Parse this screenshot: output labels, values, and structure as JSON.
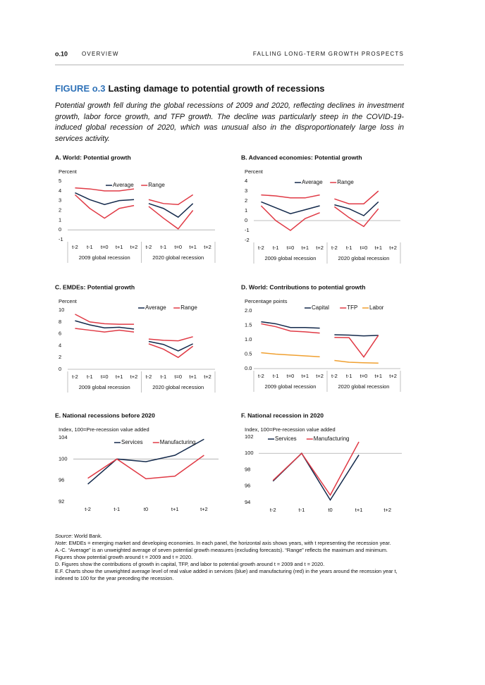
{
  "header": {
    "page": "o.10",
    "section": "OVERVIEW",
    "running_title": "FALLING LONG-TERM GROWTH PROSPECTS"
  },
  "figure": {
    "label": "FIGURE o.3",
    "title": "Lasting damage to potential growth of recessions"
  },
  "caption": "Potential growth fell during the global recessions of 2009 and 2020, reflecting declines in investment growth, labor force growth, and TFP growth. The decline was particularly steep in the COVID-19-induced global recession of 2020, which was unusual also in the disproportionately large loss in services activity.",
  "panels": [
    {
      "type": "line",
      "title": "A. World: Potential growth",
      "ylabel": "Percent",
      "ylim": [
        -1,
        5
      ],
      "yticks": [
        -1,
        0,
        1,
        2,
        3,
        4,
        5
      ],
      "categories": [
        "t-2",
        "t-1",
        "t=0",
        "t+1",
        "t+2",
        "t-2",
        "t-1",
        "t=0",
        "t+1",
        "t+2"
      ],
      "groups": [
        "2009 global recession",
        "2020 global recession"
      ],
      "series": [
        {
          "name": "Average",
          "color": "#13294b",
          "values": [
            3.8,
            3.1,
            2.6,
            3.0,
            3.1,
            2.7,
            2.2,
            1.3,
            2.7,
            null
          ]
        },
        {
          "name": "Range",
          "color": "#e03a45",
          "values": [
            4.3,
            4.2,
            4.0,
            4.0,
            4.2,
            3.1,
            2.7,
            2.6,
            3.6,
            null
          ],
          "lower": [
            3.6,
            2.2,
            1.2,
            2.2,
            2.5,
            2.4,
            1.2,
            0.1,
            2.0,
            null
          ]
        }
      ]
    },
    {
      "type": "line",
      "title": "B. Advanced economies: Potential growth",
      "ylabel": "Percent",
      "ylim": [
        -2,
        4
      ],
      "yticks": [
        -2,
        -1,
        0,
        1,
        2,
        3,
        4
      ],
      "categories": [
        "t-2",
        "t-1",
        "t=0",
        "t+1",
        "t+2",
        "t-2",
        "t-1",
        "t=0",
        "t+1",
        "t+2"
      ],
      "groups": [
        "2009 global recession",
        "2020 global recession"
      ],
      "series": [
        {
          "name": "Average",
          "color": "#13294b",
          "values": [
            1.9,
            1.3,
            0.7,
            1.1,
            1.5,
            1.6,
            1.2,
            0.5,
            1.9,
            null
          ]
        },
        {
          "name": "Range",
          "color": "#e03a45",
          "values": [
            2.6,
            2.5,
            2.3,
            2.3,
            2.6,
            2.2,
            1.7,
            1.7,
            3.0,
            null
          ],
          "lower": [
            1.5,
            0.0,
            -1.0,
            0.2,
            0.8,
            1.4,
            0.3,
            -0.6,
            1.2,
            null
          ]
        }
      ]
    },
    {
      "type": "line",
      "title": "C. EMDEs: Potential growth",
      "ylabel": "Percent",
      "ylim": [
        0,
        10
      ],
      "yticks": [
        0,
        2,
        4,
        6,
        8,
        10
      ],
      "categories": [
        "t-2",
        "t-1",
        "t=0",
        "t+1",
        "t+2",
        "t-2",
        "t-1",
        "t=0",
        "t+1",
        "t+2"
      ],
      "groups": [
        "2009 global recession",
        "2020 global recession"
      ],
      "series": [
        {
          "name": "Average",
          "color": "#13294b",
          "values": [
            8.2,
            7.5,
            7.0,
            7.1,
            6.8,
            4.7,
            4.2,
            3.1,
            4.3,
            null
          ]
        },
        {
          "name": "Range",
          "color": "#e03a45",
          "values": [
            9.3,
            8.0,
            7.7,
            7.6,
            7.6,
            5.1,
            4.9,
            4.8,
            5.5,
            null
          ],
          "lower": [
            6.9,
            6.6,
            6.3,
            6.6,
            6.3,
            4.3,
            3.4,
            2.0,
            3.9,
            null
          ]
        }
      ]
    },
    {
      "type": "line",
      "title": "D. World: Contributions to potential growth",
      "ylabel": "Percentage points",
      "ylim": [
        0,
        2
      ],
      "yticks": [
        {
          "value": 0,
          "label": "0.0"
        },
        {
          "value": 0.5,
          "label": "0.5"
        },
        {
          "value": 1,
          "label": "1.0"
        },
        {
          "value": 1.5,
          "label": "1.5"
        },
        {
          "value": 2,
          "label": "2.0"
        }
      ],
      "categories": [
        "t-2",
        "t-1",
        "t=0",
        "t+1",
        "t+2",
        "t-2",
        "t-1",
        "t=0",
        "t+1",
        "t+2"
      ],
      "groups": [
        "2009 global recession",
        "2020 global recession"
      ],
      "series": [
        {
          "name": "Capital",
          "color": "#13294b",
          "values": [
            1.62,
            1.55,
            1.42,
            1.42,
            1.4,
            1.17,
            1.16,
            1.13,
            1.15,
            null
          ]
        },
        {
          "name": "TFP",
          "color": "#e03a45",
          "values": [
            1.55,
            1.45,
            1.3,
            1.27,
            1.23,
            1.08,
            1.07,
            0.4,
            1.15,
            null
          ]
        },
        {
          "name": "Labor",
          "color": "#f0a030",
          "values": [
            0.55,
            0.5,
            0.47,
            0.44,
            0.41,
            0.28,
            0.22,
            0.2,
            0.19,
            null
          ]
        }
      ]
    },
    {
      "type": "line",
      "title": "E. National recessions before 2020",
      "ylabel": "Index, 100=Pre-recession value added",
      "ylim": [
        92,
        104
      ],
      "yticks": [
        92,
        96,
        100,
        104
      ],
      "reference_line": 100,
      "categories": [
        "t-2",
        "t-1",
        "t0",
        "t+1",
        "t+2"
      ],
      "series": [
        {
          "name": "Services",
          "color": "#13294b",
          "values": [
            95.3,
            100,
            99.5,
            100.7,
            103.7
          ]
        },
        {
          "name": "Manufacturing",
          "color": "#e03a45",
          "values": [
            96.4,
            100,
            96.3,
            96.8,
            100.7
          ]
        }
      ]
    },
    {
      "type": "line",
      "title": "F. National recession in 2020",
      "ylabel": "Index, 100=Pre-recession value added",
      "ylim": [
        94,
        102
      ],
      "yticks": [
        94,
        96,
        98,
        100,
        102
      ],
      "reference_line": 100,
      "categories": [
        "t-2",
        "t-1",
        "t0",
        "t+1",
        "t+2"
      ],
      "series": [
        {
          "name": "Services",
          "color": "#13294b",
          "values": [
            96.6,
            100,
            94.3,
            99.8,
            null
          ]
        },
        {
          "name": "Manufacturing",
          "color": "#e03a45",
          "values": [
            96.7,
            100,
            94.9,
            101.4,
            null
          ]
        }
      ]
    }
  ],
  "notes": {
    "source": {
      "label": "Source",
      "text": ": World Bank."
    },
    "note": {
      "label": "Note",
      "text": ": EMDEs = emerging market and developing economies. In each panel, the horizontal axis shows years, with t representing the recession year."
    },
    "items": [
      "A.-C. “Average” is an unweighted average of seven potential growth measures (excluding forecasts). “Range” reflects the maximum and minimum. Figures show potential growth around t = 2009 and t = 2020.",
      "D. Figures show the contributions of growth in capital, TFP, and labor to potential growth around t = 2009 and t = 2020.",
      "E.F. Charts show the unweighted average level of real value added in services (blue) and manufacturing (red) in the years around the recession year t, indexed to 100 for the year preceding the recession."
    ]
  }
}
